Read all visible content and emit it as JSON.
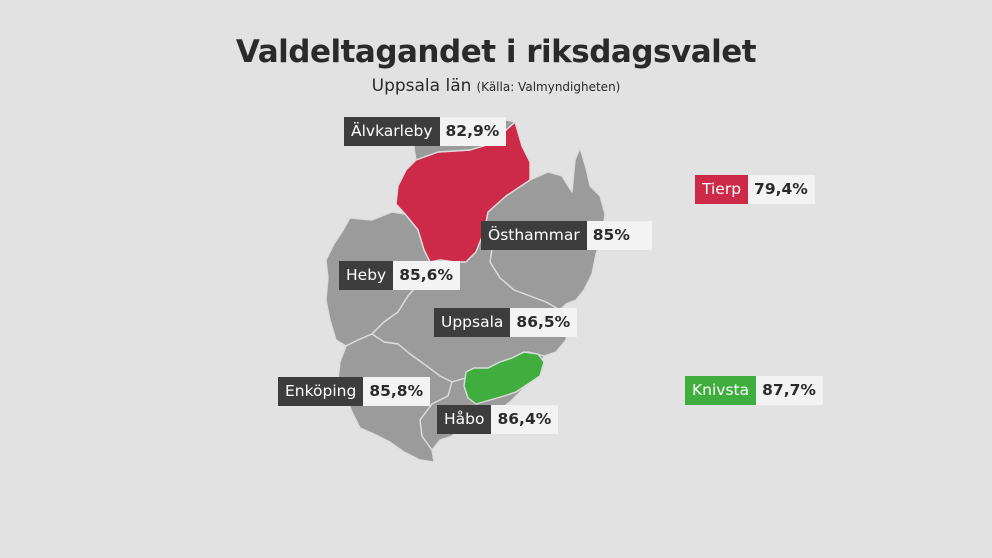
{
  "title": "Valdeltagandet i riksdagsvalet",
  "subtitle": "Uppsala län",
  "source": "(Källa: Valmyndigheten)",
  "colors": {
    "background": "#e2e2e2",
    "default_fill": "#9b9b9b",
    "lowest": "#cc2a48",
    "highest": "#3fae3f",
    "label_bg": "#3d3d3d"
  },
  "labels": {
    "alvkarleby": {
      "name": "Älvkarleby",
      "value": "82,9%"
    },
    "tierp": {
      "name": "Tierp",
      "value": "79,4%"
    },
    "osthammar": {
      "name": "Östhammar",
      "value": "85%"
    },
    "heby": {
      "name": "Heby",
      "value": "85,6%"
    },
    "uppsala": {
      "name": "Uppsala",
      "value": "86,5%"
    },
    "enkoping": {
      "name": "Enköping",
      "value": "85,8%"
    },
    "habo": {
      "name": "Håbo",
      "value": "86,4%"
    },
    "knivsta": {
      "name": "Knivsta",
      "value": "87,7%"
    }
  }
}
